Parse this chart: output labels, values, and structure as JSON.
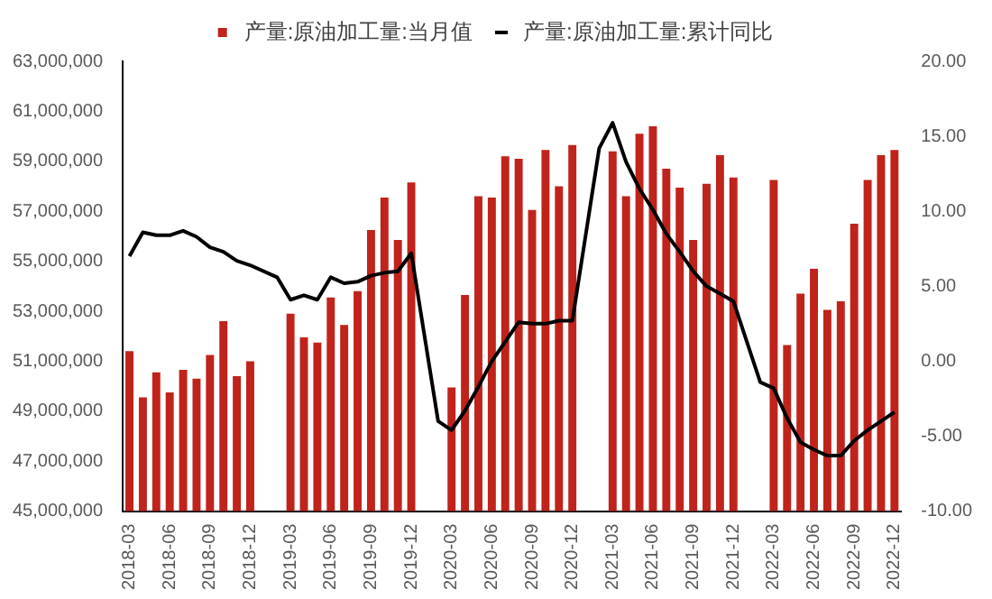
{
  "chart_data": {
    "type": "bar",
    "categories": [
      "2018-03",
      null,
      null,
      "2018-06",
      null,
      null,
      "2018-09",
      null,
      null,
      "2018-12",
      null,
      null,
      "2019-03",
      null,
      null,
      "2019-06",
      null,
      null,
      "2019-09",
      null,
      null,
      "2019-12",
      null,
      null,
      "2020-03",
      null,
      null,
      "2020-06",
      null,
      null,
      "2020-09",
      null,
      null,
      "2020-12",
      null,
      null,
      "2021-03",
      null,
      null,
      "2021-06",
      null,
      null,
      "2021-09",
      null,
      null,
      "2021-12",
      null,
      null,
      "2022-03",
      null,
      null,
      "2022-06",
      null,
      null,
      "2022-09",
      null,
      null,
      "2022-12"
    ],
    "series": [
      {
        "name": "产量:原油加工量:当月值",
        "color": "#c0231b",
        "values": [
          51400000,
          49550000,
          50550000,
          49750000,
          50650000,
          50300000,
          51250000,
          52600000,
          50400000,
          51000000,
          null,
          null,
          52900000,
          51950000,
          51750000,
          53550000,
          52450000,
          53800000,
          56250000,
          57550000,
          55850000,
          58150000,
          null,
          null,
          49950000,
          53650000,
          57600000,
          57550000,
          59200000,
          59100000,
          57050000,
          59450000,
          58000000,
          59650000,
          null,
          null,
          59400000,
          57600000,
          60100000,
          60400000,
          58700000,
          57950000,
          55850000,
          58100000,
          59250000,
          58350000,
          null,
          null,
          58250000,
          51650000,
          53700000,
          54700000,
          53050000,
          53400000,
          56500000,
          58250000,
          59250000,
          59450000
        ]
      },
      {
        "name": "产量:原油加工量:累计同比",
        "type": "line",
        "axis": "y2",
        "color": "#000000",
        "values": [
          7.0,
          8.6,
          8.4,
          8.4,
          8.7,
          8.3,
          7.6,
          7.3,
          6.7,
          6.4,
          null,
          5.6,
          4.1,
          4.4,
          4.1,
          5.6,
          5.2,
          5.3,
          5.7,
          5.9,
          6.0,
          7.2,
          null,
          -4.0,
          -4.6,
          -3.3,
          -1.7,
          0.0,
          1.3,
          2.6,
          2.5,
          2.5,
          2.7,
          2.7,
          null,
          14.2,
          15.9,
          13.3,
          11.5,
          10.1,
          8.5,
          7.3,
          6.0,
          5.0,
          4.5,
          4.0,
          null,
          -1.4,
          -1.8,
          -3.8,
          -5.4,
          -5.9,
          -6.3,
          -6.3,
          -5.3,
          -4.6,
          -4.0,
          -3.4
        ]
      }
    ],
    "ylim": [
      45000000,
      63000000
    ],
    "yticks": [
      {
        "value": 45000000,
        "label": "45,000,000"
      },
      {
        "value": 47000000,
        "label": "47,000,000"
      },
      {
        "value": 49000000,
        "label": "49,000,000"
      },
      {
        "value": 51000000,
        "label": "51,000,000"
      },
      {
        "value": 53000000,
        "label": "53,000,000"
      },
      {
        "value": 55000000,
        "label": "55,000,000"
      },
      {
        "value": 57000000,
        "label": "57,000,000"
      },
      {
        "value": 59000000,
        "label": "59,000,000"
      },
      {
        "value": 61000000,
        "label": "61,000,000"
      },
      {
        "value": 63000000,
        "label": "63,000,000"
      }
    ],
    "y2lim": [
      -10,
      20
    ],
    "y2ticks": [
      {
        "value": -10,
        "label": "-10.00"
      },
      {
        "value": -5,
        "label": "-5.00"
      },
      {
        "value": 0,
        "label": "0.00"
      },
      {
        "value": 5,
        "label": "5.00"
      },
      {
        "value": 10,
        "label": "10.00"
      },
      {
        "value": 15,
        "label": "15.00"
      },
      {
        "value": 20,
        "label": "20.00"
      }
    ],
    "grid": false,
    "legend": "top",
    "marker": "none",
    "line_style": "solid"
  }
}
